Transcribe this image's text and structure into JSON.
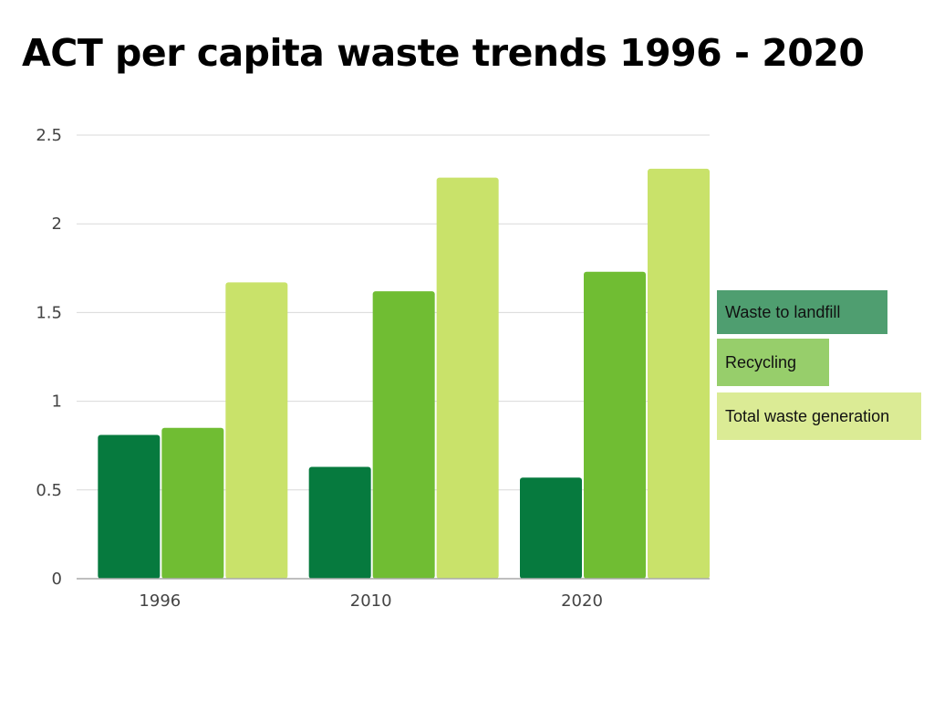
{
  "title": "ACT per capita waste trends 1996 - 2020",
  "chart_data": {
    "type": "bar",
    "title": "ACT per capita waste trends 1996 - 2020",
    "xlabel": "",
    "ylabel": "",
    "categories": [
      "1996",
      "2010",
      "2020"
    ],
    "ylim": [
      0,
      2.5
    ],
    "yticks": [
      "0",
      "0.5",
      "1",
      "1.5",
      "2",
      "2.5"
    ],
    "grid": true,
    "legend_position": "right",
    "series": [
      {
        "name": "Waste to landfill",
        "values": [
          0.81,
          0.63,
          0.57
        ],
        "color": "#067a3e",
        "legend_color": "#4f9e70"
      },
      {
        "name": "Recycling",
        "values": [
          0.85,
          1.62,
          1.73
        ],
        "color": "#70bd33",
        "legend_color": "#97ce6b"
      },
      {
        "name": "Total waste generation",
        "values": [
          1.67,
          2.26,
          2.31
        ],
        "color": "#c9e26a",
        "legend_color": "#dbeb95"
      }
    ]
  }
}
